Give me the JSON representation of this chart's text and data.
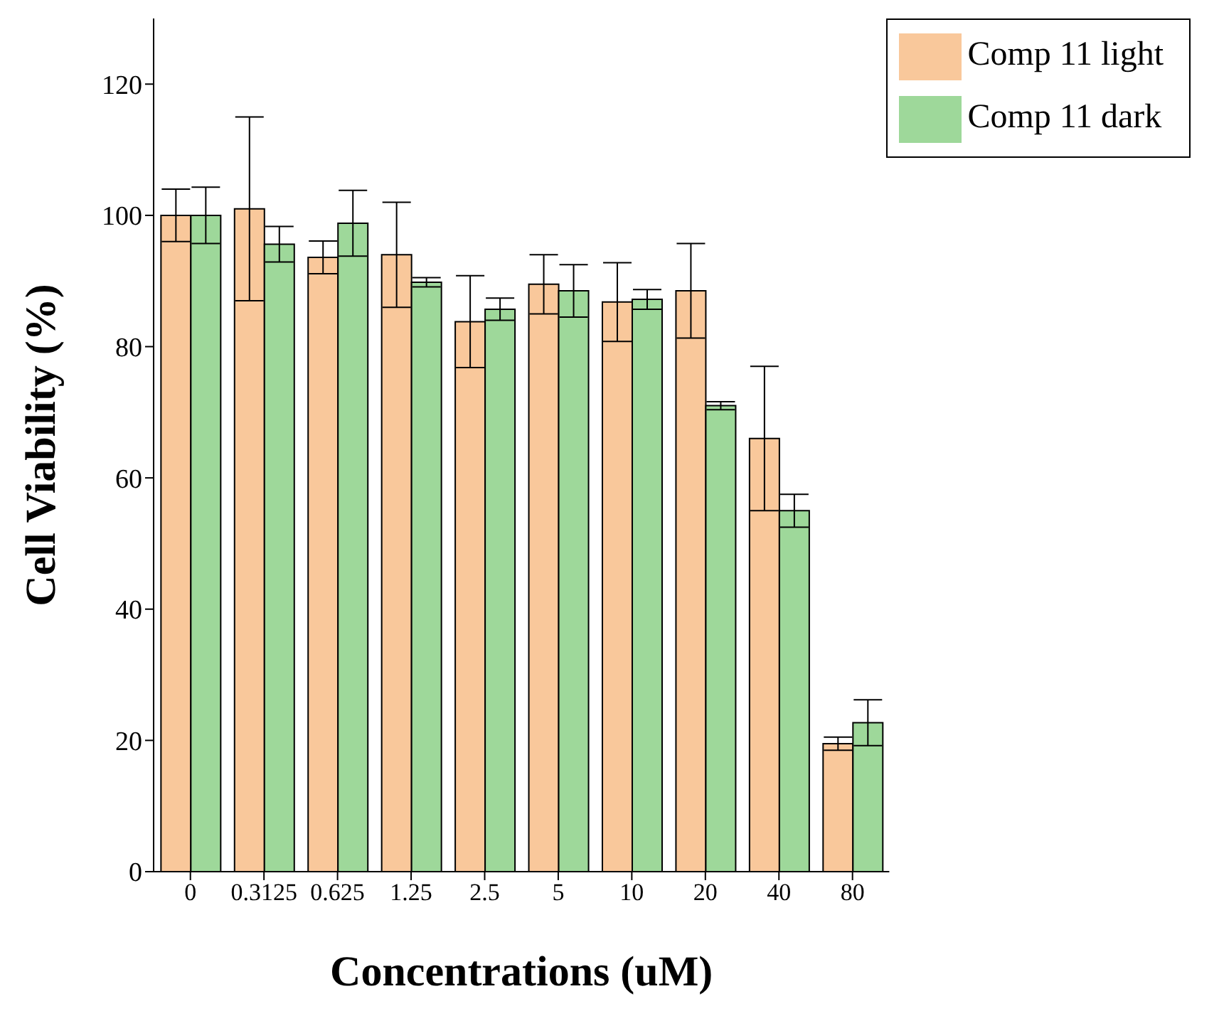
{
  "chart_data": {
    "type": "bar",
    "xlabel": "Concentrations (uM)",
    "ylabel": "Cell Viability (%)",
    "categories": [
      "0",
      "0.3125",
      "0.625",
      "1.25",
      "2.5",
      "5",
      "10",
      "20",
      "40",
      "80"
    ],
    "series": [
      {
        "name": "Comp 11 light",
        "color": "#f9c89b",
        "values": [
          100,
          101,
          93.6,
          94,
          83.8,
          89.5,
          86.8,
          88.5,
          66,
          19.5
        ],
        "errors": [
          4,
          14,
          2.5,
          8,
          7,
          4.5,
          6,
          7.2,
          11,
          1
        ]
      },
      {
        "name": "Comp 11 dark",
        "color": "#9ed89a",
        "values": [
          100,
          95.6,
          98.8,
          89.8,
          85.7,
          88.5,
          87.2,
          71,
          55,
          22.7
        ],
        "errors": [
          4.3,
          2.7,
          5,
          0.7,
          1.7,
          4,
          1.5,
          0.6,
          2.5,
          3.5
        ]
      }
    ],
    "ylim": [
      0,
      130
    ],
    "yticks": [
      0,
      20,
      40,
      60,
      80,
      100,
      120
    ],
    "grid": false,
    "legend": "top right"
  }
}
